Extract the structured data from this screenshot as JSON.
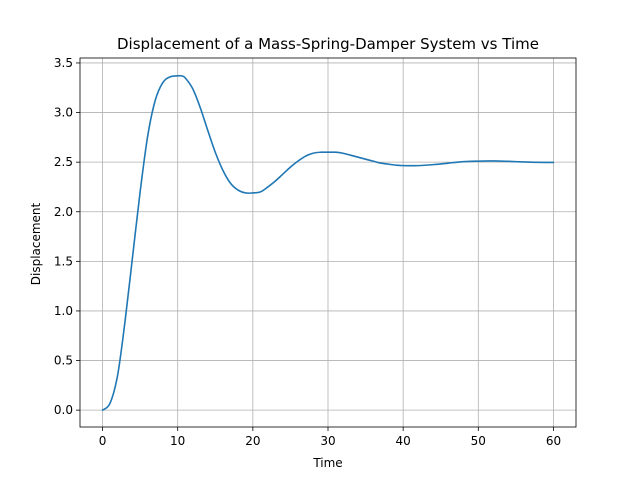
{
  "chart_data": {
    "type": "line",
    "title": "Displacement of a Mass-Spring-Damper System vs Time",
    "xlabel": "Time",
    "ylabel": "Displacement",
    "xlim": [
      -3,
      63
    ],
    "ylim": [
      -0.17,
      3.55
    ],
    "xticks": [
      0,
      10,
      20,
      30,
      40,
      50,
      60
    ],
    "xtick_labels": [
      "0",
      "10",
      "20",
      "30",
      "40",
      "50",
      "60"
    ],
    "yticks": [
      0.0,
      0.5,
      1.0,
      1.5,
      2.0,
      2.5,
      3.0,
      3.5
    ],
    "ytick_labels": [
      "0.0",
      "0.5",
      "1.0",
      "1.5",
      "2.0",
      "2.5",
      "3.0",
      "3.5"
    ],
    "grid": true,
    "series": [
      {
        "color": "#1f77b4",
        "x": [
          0,
          1,
          2,
          3,
          4,
          5,
          6,
          7,
          8,
          9,
          10,
          10.5,
          11,
          12,
          13,
          14,
          15,
          16,
          17,
          18,
          19,
          20,
          21,
          22,
          23,
          24,
          25,
          26,
          27,
          28,
          29,
          30,
          31,
          32,
          33,
          34,
          35,
          36,
          37,
          38,
          39,
          40,
          42,
          44,
          46,
          48,
          50,
          52,
          54,
          56,
          58,
          60
        ],
        "y": [
          0.0,
          0.07,
          0.35,
          0.9,
          1.55,
          2.2,
          2.76,
          3.12,
          3.3,
          3.36,
          3.37,
          3.37,
          3.35,
          3.24,
          3.05,
          2.82,
          2.6,
          2.42,
          2.29,
          2.22,
          2.19,
          2.19,
          2.2,
          2.25,
          2.31,
          2.38,
          2.45,
          2.51,
          2.56,
          2.59,
          2.6,
          2.6,
          2.6,
          2.59,
          2.57,
          2.55,
          2.53,
          2.51,
          2.49,
          2.48,
          2.47,
          2.465,
          2.465,
          2.475,
          2.49,
          2.505,
          2.51,
          2.512,
          2.508,
          2.502,
          2.498,
          2.497
        ]
      }
    ]
  }
}
